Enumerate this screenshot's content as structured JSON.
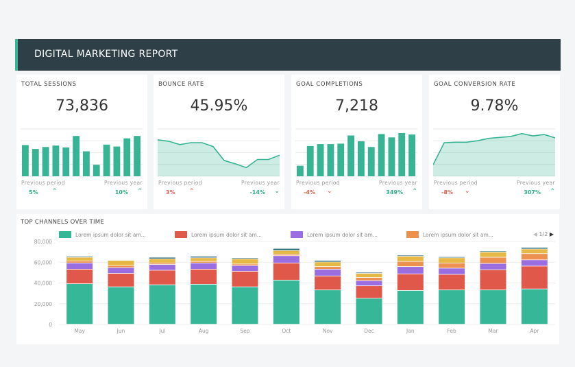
{
  "header": {
    "title": "DIGITAL MARKETING REPORT"
  },
  "kpis": [
    {
      "title": "TOTAL SESSIONS",
      "value": "73,836",
      "chart": "bar",
      "spark": [
        65,
        57,
        61,
        64,
        60,
        84,
        52,
        24,
        66,
        62,
        79,
        84
      ],
      "prev_period_label": "Previous period",
      "prev_period": "5%",
      "prev_period_dir": "up",
      "prev_year_label": "Previous year",
      "prev_year": "10%",
      "prev_year_dir": "up"
    },
    {
      "title": "BOUNCE RATE",
      "value": "45.95%",
      "chart": "area",
      "spark": [
        76,
        73,
        66,
        70,
        70,
        62,
        33,
        26,
        18,
        35,
        35,
        44
      ],
      "prev_period_label": "Previous period",
      "prev_period": "3%",
      "prev_period_dir": "up-bad",
      "prev_year_label": "Previous year",
      "prev_year": "-14%",
      "prev_year_dir": "down-good"
    },
    {
      "title": "GOAL COMPLETIONS",
      "value": "7,218",
      "chart": "bar",
      "spark": [
        22,
        63,
        67,
        67,
        68,
        85,
        73,
        61,
        88,
        81,
        90,
        87
      ],
      "prev_period_label": "Previous period",
      "prev_period": "-4%",
      "prev_period_dir": "down",
      "prev_year_label": "Previous year",
      "prev_year": "349%",
      "prev_year_dir": "up"
    },
    {
      "title": "GOAL CONVERSION RATE",
      "value": "9.78%",
      "chart": "area",
      "spark": [
        24,
        70,
        71,
        71,
        74,
        79,
        81,
        83,
        89,
        84,
        87,
        80
      ],
      "prev_period_label": "Previous period",
      "prev_period": "-8%",
      "prev_period_dir": "down",
      "prev_year_label": "Previous year",
      "prev_year": "307%",
      "prev_year_dir": "up"
    }
  ],
  "colors": {
    "accent": "#36b494",
    "header_bg": "#2e3f47",
    "up": "#2fae8a",
    "down": "#e26050"
  },
  "bottom": {
    "title": "TOP CHANNELS OVER TIME",
    "pager": "1/2"
  },
  "chart_data": {
    "type": "bar",
    "stacked": true,
    "categories": [
      "May",
      "Jun",
      "Jul",
      "Aug",
      "Sep",
      "Oct",
      "Nov",
      "Dec",
      "Jan",
      "Feb",
      "Mar",
      "Apr"
    ],
    "ylim": [
      0,
      80000
    ],
    "yticks": [
      "0",
      "20,000",
      "40,000",
      "60,000",
      "80,000"
    ],
    "grid": true,
    "legend": "top",
    "series": [
      {
        "name": "Lorem ipsum dolor sit am...",
        "color": "#36b898",
        "values": [
          39000,
          36000,
          38000,
          38500,
          36000,
          42500,
          33000,
          25000,
          32500,
          33000,
          33000,
          34000
        ]
      },
      {
        "name": "Lorem ipsum dolor sit am...",
        "color": "#e0584a",
        "values": [
          14000,
          13000,
          14000,
          14500,
          15000,
          16500,
          13500,
          12000,
          16000,
          15000,
          19500,
          22000
        ]
      },
      {
        "name": "Lorem ipsum dolor sit am...",
        "color": "#9a6ee0",
        "values": [
          6000,
          5500,
          5500,
          6000,
          5500,
          7000,
          6500,
          5000,
          7000,
          6000,
          6000,
          6000
        ]
      },
      {
        "name": "Lorem ipsum dolor sit am...",
        "color": "#ec9150",
        "values": [
          2000,
          2000,
          1500,
          1500,
          1500,
          1500,
          2500,
          3000,
          5000,
          5000,
          6000,
          6000
        ]
      },
      {
        "color": "#e6b845",
        "values": [
          3500,
          5000,
          4000,
          3500,
          5000,
          3500,
          4500,
          4000,
          5000,
          5000,
          5000,
          4500
        ]
      },
      {
        "color": "#2f6e7e",
        "values": [
          1000,
          500,
          1500,
          1500,
          1000,
          2000,
          1500,
          1000,
          1000,
          1000,
          1000,
          1500
        ]
      }
    ]
  }
}
